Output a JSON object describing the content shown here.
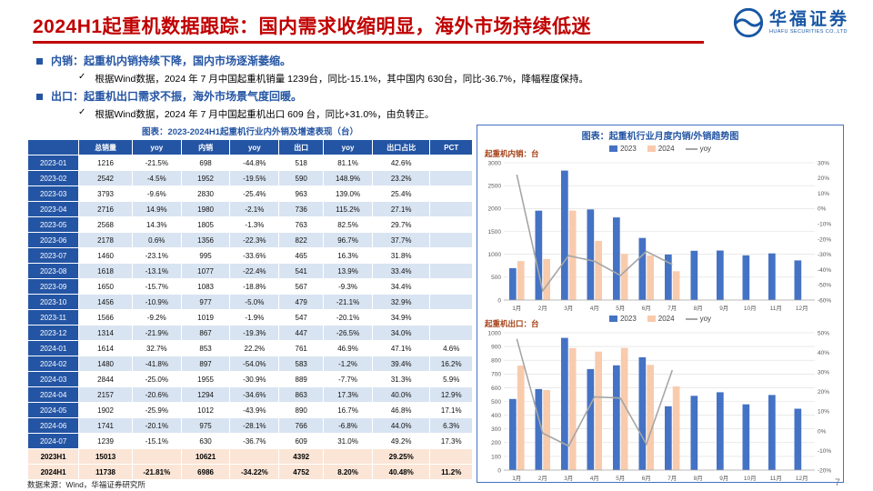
{
  "page": {
    "title": "2024H1起重机数据跟踪：国内需求收缩明显，海外市场持续低迷"
  },
  "logo": {
    "name": "华福证券",
    "subtitle": "HUAFU SECURITIES CO.,LTD"
  },
  "bullets": [
    {
      "label": "内销：",
      "text": "起重机内销持续下降，国内市场逐渐萎缩。",
      "check": "✓",
      "detail": "根据Wind数据，2024 年 7 月中国起重机销量 1239台，同比-15.1%，其中国内 630台，同比-36.7%，降幅程度保持。"
    },
    {
      "label": "出口：",
      "text": "起重机出口需求不振，海外市场景气度回暖。",
      "check": "✓",
      "detail": "根据Wind数据，2024 年 7 月中国起重机出口 609 台，同比+31.0%，由负转正。"
    }
  ],
  "table": {
    "title": "图表：2023-2024H1起重机行业内外销及增速表现（台）",
    "headers": [
      "",
      "总销量",
      "yoy",
      "内销",
      "yoy",
      "出口",
      "yoy",
      "出口占比",
      "PCT"
    ],
    "rows": [
      [
        "2023-01",
        "1216",
        "-21.5%",
        "698",
        "-44.8%",
        "518",
        "81.1%",
        "42.6%",
        ""
      ],
      [
        "2023-02",
        "2542",
        "-4.5%",
        "1952",
        "-19.5%",
        "590",
        "148.9%",
        "23.2%",
        ""
      ],
      [
        "2023-03",
        "3793",
        "-9.6%",
        "2830",
        "-25.4%",
        "963",
        "139.0%",
        "25.4%",
        ""
      ],
      [
        "2023-04",
        "2716",
        "14.9%",
        "1980",
        "-2.1%",
        "736",
        "115.2%",
        "27.1%",
        ""
      ],
      [
        "2023-05",
        "2568",
        "14.3%",
        "1805",
        "-1.3%",
        "763",
        "82.5%",
        "29.7%",
        ""
      ],
      [
        "2023-06",
        "2178",
        "0.6%",
        "1356",
        "-22.3%",
        "822",
        "96.7%",
        "37.7%",
        ""
      ],
      [
        "2023-07",
        "1460",
        "-23.1%",
        "995",
        "-33.6%",
        "465",
        "16.3%",
        "31.8%",
        ""
      ],
      [
        "2023-08",
        "1618",
        "-13.1%",
        "1077",
        "-22.4%",
        "541",
        "13.9%",
        "33.4%",
        ""
      ],
      [
        "2023-09",
        "1650",
        "-15.7%",
        "1083",
        "-18.8%",
        "567",
        "-9.3%",
        "34.4%",
        ""
      ],
      [
        "2023-10",
        "1456",
        "-10.9%",
        "977",
        "-5.0%",
        "479",
        "-21.1%",
        "32.9%",
        ""
      ],
      [
        "2023-11",
        "1566",
        "-9.2%",
        "1019",
        "-1.9%",
        "547",
        "-20.1%",
        "34.9%",
        ""
      ],
      [
        "2023-12",
        "1314",
        "-21.9%",
        "867",
        "-19.3%",
        "447",
        "-26.5%",
        "34.0%",
        ""
      ],
      [
        "2024-01",
        "1614",
        "32.7%",
        "853",
        "22.2%",
        "761",
        "46.9%",
        "47.1%",
        "4.6%"
      ],
      [
        "2024-02",
        "1480",
        "-41.8%",
        "897",
        "-54.0%",
        "583",
        "-1.2%",
        "39.4%",
        "16.2%"
      ],
      [
        "2024-03",
        "2844",
        "-25.0%",
        "1955",
        "-30.9%",
        "889",
        "-7.7%",
        "31.3%",
        "5.9%"
      ],
      [
        "2024-04",
        "2157",
        "-20.6%",
        "1294",
        "-34.6%",
        "863",
        "17.3%",
        "40.0%",
        "12.9%"
      ],
      [
        "2024-05",
        "1902",
        "-25.9%",
        "1012",
        "-43.9%",
        "890",
        "16.7%",
        "46.8%",
        "17.1%"
      ],
      [
        "2024-06",
        "1741",
        "-20.1%",
        "975",
        "-28.1%",
        "766",
        "-6.8%",
        "44.0%",
        "6.3%"
      ],
      [
        "2024-07",
        "1239",
        "-15.1%",
        "630",
        "-36.7%",
        "609",
        "31.0%",
        "49.2%",
        "17.3%"
      ],
      [
        "2023H1",
        "15013",
        "",
        "10621",
        "",
        "4392",
        "",
        "29.25%",
        ""
      ],
      [
        "2024H1",
        "11738",
        "-21.81%",
        "6986",
        "-34.22%",
        "4752",
        "8.20%",
        "40.48%",
        "11.2%"
      ]
    ],
    "highlight_rows": [
      19,
      20
    ]
  },
  "charts_panel": {
    "title": "图表：起重机行业月度内销/外销趋势图"
  },
  "chart_data": [
    {
      "type": "bar",
      "title": "起重机内销：台",
      "categories": [
        "1月",
        "2月",
        "3月",
        "4月",
        "5月",
        "6月",
        "7月",
        "8月",
        "9月",
        "10月",
        "11月",
        "12月"
      ],
      "series": [
        {
          "name": "2023",
          "values": [
            698,
            1952,
            2830,
            1980,
            1805,
            1356,
            995,
            1077,
            1083,
            977,
            1019,
            867
          ]
        },
        {
          "name": "2024",
          "values": [
            853,
            897,
            1955,
            1294,
            1012,
            975,
            630,
            null,
            null,
            null,
            null,
            null
          ]
        }
      ],
      "line": {
        "name": "yoy",
        "values": [
          22.2,
          -54.0,
          -30.9,
          -34.6,
          -43.9,
          -28.1,
          -36.7,
          null,
          null,
          null,
          null,
          null
        ]
      },
      "y_left": {
        "min": 0,
        "max": 3000,
        "step": 500
      },
      "y_right": {
        "min": -60,
        "max": 30,
        "step": 10,
        "suffix": "%"
      },
      "legend_position": "top-center",
      "grid": true
    },
    {
      "type": "bar",
      "title": "起重机出口：台",
      "categories": [
        "1月",
        "2月",
        "3月",
        "4月",
        "5月",
        "6月",
        "7月",
        "8月",
        "9月",
        "10月",
        "11月",
        "12月"
      ],
      "series": [
        {
          "name": "2023",
          "values": [
            518,
            590,
            963,
            736,
            763,
            822,
            465,
            541,
            567,
            479,
            547,
            447
          ]
        },
        {
          "name": "2024",
          "values": [
            761,
            583,
            889,
            863,
            890,
            766,
            609,
            null,
            null,
            null,
            null,
            null
          ]
        }
      ],
      "line": {
        "name": "yoy",
        "values": [
          46.9,
          -1.2,
          -7.7,
          17.3,
          16.7,
          -6.8,
          31.0,
          null,
          null,
          null,
          null,
          null
        ]
      },
      "y_left": {
        "min": 0,
        "max": 1000,
        "step": 100
      },
      "y_right": {
        "min": -20,
        "max": 50,
        "step": 10,
        "suffix": "%"
      },
      "legend_position": "top-center",
      "grid": true
    }
  ],
  "footer": {
    "source": "数据来源：Wind，华福证券研究所",
    "page_number": "7"
  },
  "colors": {
    "title_red": "#C00000",
    "brand_blue": "#2455A4",
    "table_header_blue": "#2455A4",
    "row_alt_blue": "#D9E4F2",
    "row_highlight_orange": "#FBE5D6",
    "bar_2023": "#4472C4",
    "bar_2024": "#F8CBAD",
    "line_yoy": "#A6A6A6",
    "chart_title_brown": "#A33E13"
  }
}
